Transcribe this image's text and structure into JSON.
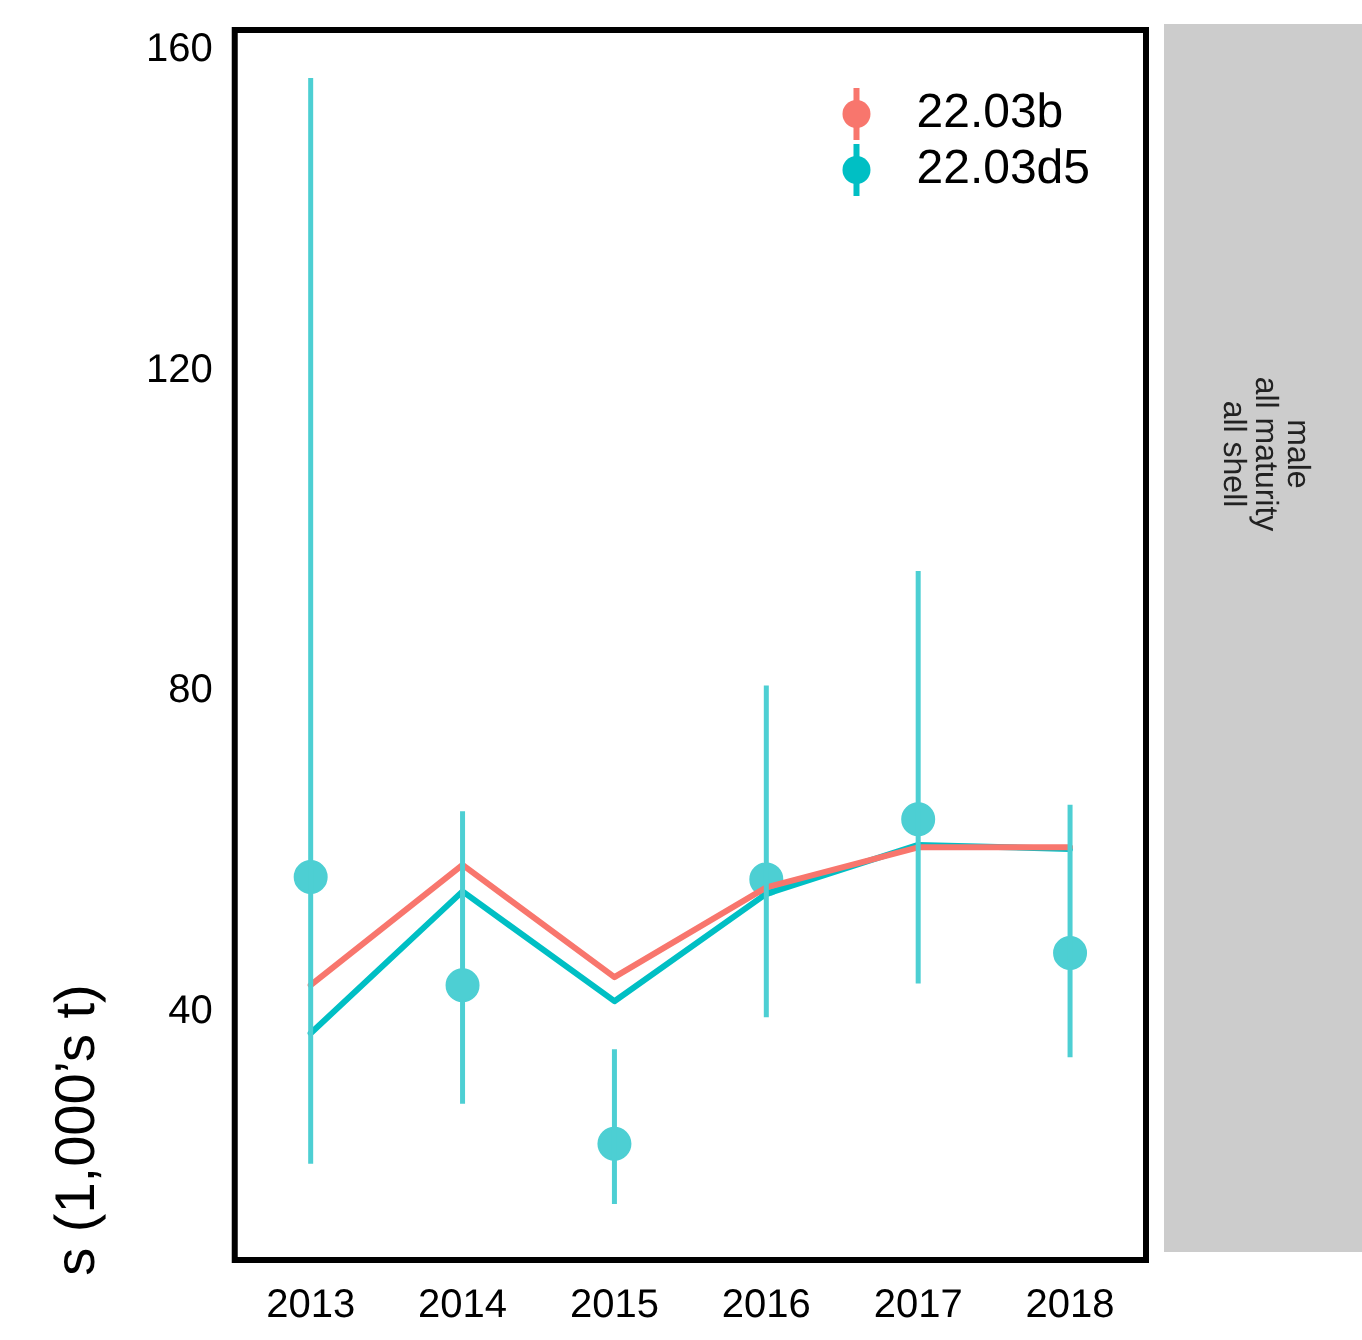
{
  "chart_data": {
    "type": "line",
    "ylabel": "s (1,000’s t)",
    "categories": [
      "2013",
      "2014",
      "2015",
      "2016",
      "2017",
      "2018"
    ],
    "series": [
      {
        "name": "22.03b",
        "type": "line",
        "color": "#f8766d",
        "values": [
          43.3,
          58.3,
          44.3,
          55.5,
          60.5,
          60.5
        ]
      },
      {
        "name": "22.03d5",
        "type": "line",
        "color": "#00bfc4",
        "values": [
          37.3,
          55,
          41.3,
          54.7,
          60.8,
          60.3
        ]
      },
      {
        "type": "scatter",
        "marker": "circle",
        "color": "#4dcfd3",
        "values": [
          56.8,
          43.3,
          23.5,
          56.5,
          64,
          47.3
        ],
        "errors": [
          [
            21,
            156.5
          ],
          [
            28.5,
            65
          ],
          [
            16,
            35.3
          ],
          [
            39.3,
            80.7
          ],
          [
            43.5,
            95
          ],
          [
            34.3,
            65.8
          ]
        ]
      }
    ],
    "ylim": [
      9,
      162.5
    ],
    "yticks": [
      40,
      80,
      120,
      160
    ],
    "grid": false,
    "legend": "top right",
    "line_style": "solid",
    "annotations": [
      "male",
      "all maturity",
      "all shell"
    ]
  }
}
